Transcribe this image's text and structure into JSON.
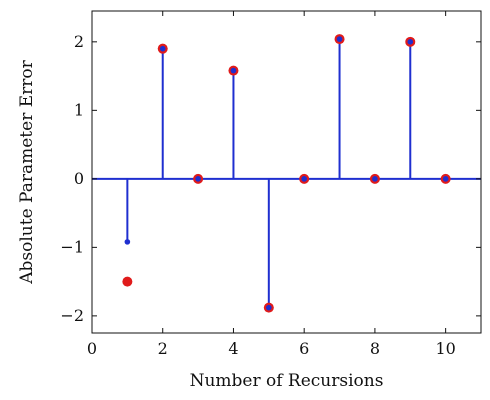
{
  "chart_data": {
    "type": "scatter",
    "subtype": "stem",
    "title": "",
    "xlabel": "Number of Recursions",
    "ylabel": "Absolute Parameter Error",
    "xlim": [
      0,
      11
    ],
    "ylim": [
      -2.25,
      2.45
    ],
    "xticks": [
      0,
      2,
      4,
      6,
      8,
      10
    ],
    "yticks": [
      -2,
      -1,
      0,
      1,
      2
    ],
    "grid": false,
    "legend": "none",
    "series": [
      {
        "style": "stem",
        "color": "#1f2fd0",
        "x": [
          1,
          2,
          3,
          4,
          5,
          6,
          7,
          8,
          9,
          10
        ],
        "y": [
          -0.92,
          1.9,
          0.0,
          1.58,
          -1.88,
          0.0,
          2.04,
          0.0,
          2.0,
          0.0
        ]
      },
      {
        "style": "markers",
        "color": "#e01b1b",
        "x": [
          1,
          2,
          3,
          4,
          5,
          6,
          7,
          8,
          9,
          10
        ],
        "y": [
          -1.5,
          1.9,
          0.0,
          1.58,
          -1.88,
          0.0,
          2.04,
          0.0,
          2.0,
          0.0
        ]
      }
    ]
  }
}
